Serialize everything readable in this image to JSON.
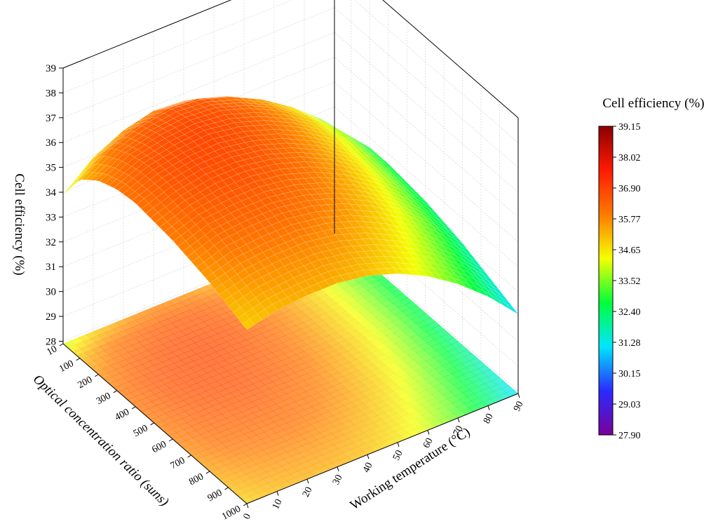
{
  "chart_data": {
    "type": "surface3d",
    "title": "",
    "x_axis": {
      "label": "Optical concentration ratio (suns)",
      "range": [
        10,
        1000
      ],
      "ticks": [
        "10",
        "100",
        "200",
        "300",
        "400",
        "500",
        "600",
        "700",
        "800",
        "900",
        "1000"
      ]
    },
    "y_axis": {
      "label": "Working temperature (°C)",
      "range": [
        0,
        90
      ],
      "ticks": [
        "0",
        "10",
        "20",
        "30",
        "40",
        "50",
        "60",
        "70",
        "80",
        "90"
      ]
    },
    "z_axis": {
      "label": "Cell efficiency (%)",
      "range": [
        27.9,
        39
      ],
      "ticks": [
        "28",
        "29",
        "30",
        "31",
        "32",
        "33",
        "34",
        "35",
        "36",
        "37",
        "38",
        "39"
      ]
    },
    "model": {
      "description_values": "Efficiency surface sampled on a grid: eta(C,T)",
      "C_samples": [
        10,
        100,
        200,
        300,
        400,
        500,
        600,
        700,
        800,
        900,
        1000
      ],
      "T_samples": [
        0,
        10,
        20,
        30,
        40,
        50,
        60,
        70,
        80,
        90
      ],
      "efficiency_grid_percent": [
        [
          33.9,
          34.9,
          35.5,
          35.8,
          35.7,
          35.3,
          34.7,
          33.9,
          32.9,
          31.7
        ],
        [
          35.1,
          35.9,
          36.3,
          36.5,
          36.4,
          36.0,
          35.4,
          34.6,
          33.6,
          32.4
        ],
        [
          35.7,
          36.3,
          36.6,
          36.7,
          36.6,
          36.2,
          35.6,
          34.8,
          33.8,
          32.6
        ],
        [
          36.0,
          36.5,
          36.7,
          36.8,
          36.6,
          36.2,
          35.6,
          34.8,
          33.8,
          32.6
        ],
        [
          36.1,
          36.5,
          36.7,
          36.7,
          36.5,
          36.1,
          35.5,
          34.7,
          33.7,
          32.5
        ],
        [
          36.0,
          36.4,
          36.6,
          36.6,
          36.4,
          36.0,
          35.4,
          34.6,
          33.6,
          32.4
        ],
        [
          35.9,
          36.3,
          36.4,
          36.4,
          36.2,
          35.8,
          35.2,
          34.4,
          33.4,
          32.2
        ],
        [
          35.7,
          36.1,
          36.2,
          36.2,
          36.0,
          35.6,
          35.0,
          34.2,
          33.2,
          32.0
        ],
        [
          35.5,
          35.8,
          35.9,
          35.9,
          35.7,
          35.3,
          34.7,
          33.9,
          32.9,
          31.7
        ],
        [
          35.2,
          35.5,
          35.6,
          35.6,
          35.4,
          35.0,
          34.4,
          33.6,
          32.6,
          31.4
        ],
        [
          34.9,
          35.2,
          35.3,
          35.3,
          35.1,
          34.7,
          34.1,
          33.3,
          32.3,
          31.1
        ]
      ]
    },
    "colorbar": {
      "title": "Cell efficiency (%)",
      "ticks": [
        "39.15",
        "38.02",
        "36.90",
        "35.77",
        "34.65",
        "33.52",
        "32.40",
        "31.28",
        "30.15",
        "29.03",
        "27.90"
      ],
      "min": 27.9,
      "max": 39.15,
      "colors_low_to_high": [
        "#7a0099",
        "#2a2aff",
        "#00e5ff",
        "#00ff3a",
        "#f5ff00",
        "#ff7a00",
        "#ff1a00",
        "#8a0000"
      ]
    },
    "projection_on_floor": true,
    "contour_lines": true,
    "grid": true
  }
}
